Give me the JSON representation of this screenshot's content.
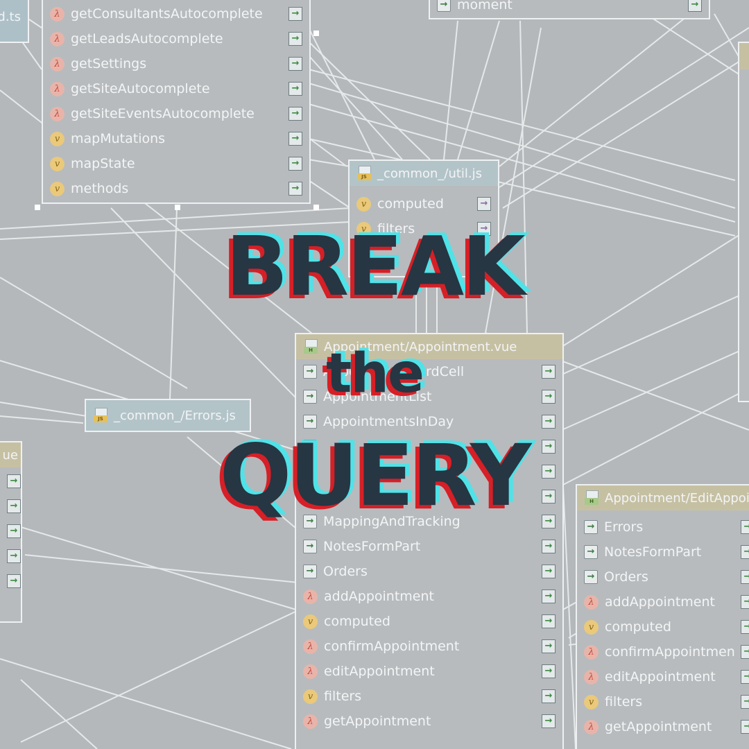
{
  "headline": {
    "line1": "BREAK",
    "line2": "the",
    "line3": "QUERY",
    "text_color": "#263643",
    "glitch_red": "#d61f26",
    "glitch_cyan": "#4fe3e8"
  },
  "nodes": {
    "top_left": {
      "title": "d.ts",
      "rows": [
        {
          "label": "getConsultantsAutocomplete",
          "kind": "lambda"
        },
        {
          "label": "getLeadsAutocomplete",
          "kind": "lambda"
        },
        {
          "label": "getSettings",
          "kind": "lambda"
        },
        {
          "label": "getSiteAutocomplete",
          "kind": "lambda"
        },
        {
          "label": "getSiteEventsAutocomplete",
          "kind": "lambda"
        },
        {
          "label": "mapMutations",
          "kind": "v"
        },
        {
          "label": "mapState",
          "kind": "v"
        },
        {
          "label": "methods",
          "kind": "v"
        }
      ]
    },
    "moment": {
      "row": "moment"
    },
    "util": {
      "title": "_common_/util.js",
      "rows": [
        {
          "label": "computed",
          "kind": "v"
        },
        {
          "label": "filters",
          "kind": "v"
        }
      ]
    },
    "errors": {
      "title": "_common_/Errors.js"
    },
    "appointment": {
      "title": "Appointment/Appointment.vue",
      "rows": [
        {
          "label": "AppointmentCardCell",
          "kind": "comp"
        },
        {
          "label": "AppointmentList",
          "kind": "comp"
        },
        {
          "label": "AppointmentsInDay",
          "kind": "comp"
        },
        {
          "label": "",
          "kind": "comp"
        },
        {
          "label": "",
          "kind": "comp"
        },
        {
          "label": "",
          "kind": "comp"
        },
        {
          "label": "MappingAndTracking",
          "kind": "comp"
        },
        {
          "label": "NotesFormPart",
          "kind": "comp"
        },
        {
          "label": "Orders",
          "kind": "comp"
        },
        {
          "label": "addAppointment",
          "kind": "lambda"
        },
        {
          "label": "computed",
          "kind": "v"
        },
        {
          "label": "confirmAppointment",
          "kind": "lambda"
        },
        {
          "label": "editAppointment",
          "kind": "lambda"
        },
        {
          "label": "filters",
          "kind": "v"
        },
        {
          "label": "getAppointment",
          "kind": "lambda"
        }
      ]
    },
    "edit": {
      "title": "Appointment/EditAppointment.vue",
      "rows": [
        {
          "label": "Errors",
          "kind": "comp"
        },
        {
          "label": "NotesFormPart",
          "kind": "comp"
        },
        {
          "label": "Orders",
          "kind": "comp"
        },
        {
          "label": "addAppointment",
          "kind": "lambda"
        },
        {
          "label": "computed",
          "kind": "v"
        },
        {
          "label": "confirmAppointment",
          "kind": "lambda"
        },
        {
          "label": "editAppointment",
          "kind": "lambda"
        },
        {
          "label": "filters",
          "kind": "v"
        },
        {
          "label": "getAppointment",
          "kind": "lambda"
        }
      ]
    },
    "left_partial": {
      "title": "ue"
    }
  },
  "icons": {
    "lambda": "lambda-icon",
    "v": "vue-v-icon",
    "comp": "component-import-icon",
    "export": "export-arrow-icon"
  }
}
